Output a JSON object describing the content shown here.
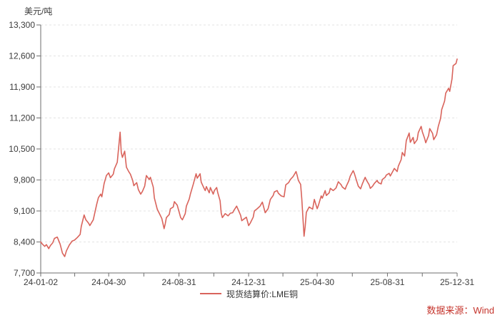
{
  "chart_data": {
    "type": "line",
    "unit_label": "美元/吨",
    "grid": "horizontal-dashed",
    "legend_position": "bottom-center",
    "ylim": [
      7700,
      13300
    ],
    "xlim": [
      "2024-01-02",
      "2025-12-31"
    ],
    "y_ticks": [
      {
        "label": "13,300",
        "value": 13300
      },
      {
        "label": "12,600",
        "value": 12600
      },
      {
        "label": "11,900",
        "value": 11900
      },
      {
        "label": "11,200",
        "value": 11200
      },
      {
        "label": "10,500",
        "value": 10500
      },
      {
        "label": "9,800",
        "value": 9800
      },
      {
        "label": "9,100",
        "value": 9100
      },
      {
        "label": "8,400",
        "value": 8400
      },
      {
        "label": "7,700",
        "value": 7700
      }
    ],
    "x_ticks": [
      {
        "label": "24-01-02",
        "date": "2024-01-02"
      },
      {
        "label": "24-04-30",
        "date": "2024-04-30"
      },
      {
        "label": "24-08-31",
        "date": "2024-08-31"
      },
      {
        "label": "24-12-31",
        "date": "2024-12-31"
      },
      {
        "label": "25-04-30",
        "date": "2025-04-30"
      },
      {
        "label": "25-08-31",
        "date": "2025-08-31"
      },
      {
        "label": "25-12-31",
        "date": "2025-12-31"
      }
    ],
    "series": [
      {
        "name": "现货结算价:LME铜",
        "color": "#D9645C",
        "points": [
          [
            "2024-01-02",
            8400
          ],
          [
            "2024-01-05",
            8350
          ],
          [
            "2024-01-09",
            8300
          ],
          [
            "2024-01-12",
            8340
          ],
          [
            "2024-01-16",
            8250
          ],
          [
            "2024-01-19",
            8320
          ],
          [
            "2024-01-23",
            8380
          ],
          [
            "2024-01-26",
            8480
          ],
          [
            "2024-01-31",
            8510
          ],
          [
            "2024-02-05",
            8350
          ],
          [
            "2024-02-09",
            8150
          ],
          [
            "2024-02-13",
            8070
          ],
          [
            "2024-02-16",
            8200
          ],
          [
            "2024-02-21",
            8330
          ],
          [
            "2024-02-26",
            8420
          ],
          [
            "2024-03-01",
            8440
          ],
          [
            "2024-03-06",
            8500
          ],
          [
            "2024-03-11",
            8570
          ],
          [
            "2024-03-13",
            8750
          ],
          [
            "2024-03-18",
            9010
          ],
          [
            "2024-03-21",
            8900
          ],
          [
            "2024-03-26",
            8820
          ],
          [
            "2024-03-28",
            8770
          ],
          [
            "2024-04-03",
            8900
          ],
          [
            "2024-04-09",
            9250
          ],
          [
            "2024-04-12",
            9400
          ],
          [
            "2024-04-16",
            9480
          ],
          [
            "2024-04-18",
            9420
          ],
          [
            "2024-04-22",
            9720
          ],
          [
            "2024-04-26",
            9900
          ],
          [
            "2024-04-30",
            9960
          ],
          [
            "2024-05-03",
            9850
          ],
          [
            "2024-05-08",
            9930
          ],
          [
            "2024-05-10",
            10050
          ],
          [
            "2024-05-15",
            10200
          ],
          [
            "2024-05-20",
            10880
          ],
          [
            "2024-05-22",
            10420
          ],
          [
            "2024-05-24",
            10310
          ],
          [
            "2024-05-28",
            10450
          ],
          [
            "2024-05-31",
            10090
          ],
          [
            "2024-06-04",
            9990
          ],
          [
            "2024-06-07",
            9930
          ],
          [
            "2024-06-11",
            9790
          ],
          [
            "2024-06-13",
            9670
          ],
          [
            "2024-06-18",
            9740
          ],
          [
            "2024-06-21",
            9580
          ],
          [
            "2024-06-25",
            9480
          ],
          [
            "2024-06-28",
            9540
          ],
          [
            "2024-07-02",
            9660
          ],
          [
            "2024-07-05",
            9900
          ],
          [
            "2024-07-10",
            9810
          ],
          [
            "2024-07-12",
            9860
          ],
          [
            "2024-07-17",
            9640
          ],
          [
            "2024-07-19",
            9390
          ],
          [
            "2024-07-24",
            9140
          ],
          [
            "2024-07-29",
            9010
          ],
          [
            "2024-08-01",
            8930
          ],
          [
            "2024-08-05",
            8700
          ],
          [
            "2024-08-07",
            8810
          ],
          [
            "2024-08-09",
            8950
          ],
          [
            "2024-08-14",
            9020
          ],
          [
            "2024-08-16",
            9150
          ],
          [
            "2024-08-21",
            9190
          ],
          [
            "2024-08-23",
            9310
          ],
          [
            "2024-08-28",
            9230
          ],
          [
            "2024-09-03",
            8950
          ],
          [
            "2024-09-06",
            8900
          ],
          [
            "2024-09-11",
            9040
          ],
          [
            "2024-09-13",
            9210
          ],
          [
            "2024-09-18",
            9370
          ],
          [
            "2024-09-20",
            9480
          ],
          [
            "2024-09-25",
            9700
          ],
          [
            "2024-09-30",
            9940
          ],
          [
            "2024-10-02",
            9840
          ],
          [
            "2024-10-07",
            9940
          ],
          [
            "2024-10-09",
            9750
          ],
          [
            "2024-10-14",
            9610
          ],
          [
            "2024-10-16",
            9560
          ],
          [
            "2024-10-18",
            9650
          ],
          [
            "2024-10-23",
            9510
          ],
          [
            "2024-10-25",
            9630
          ],
          [
            "2024-10-30",
            9480
          ],
          [
            "2024-11-01",
            9560
          ],
          [
            "2024-11-05",
            9630
          ],
          [
            "2024-11-07",
            9510
          ],
          [
            "2024-11-11",
            9330
          ],
          [
            "2024-11-13",
            9050
          ],
          [
            "2024-11-15",
            8950
          ],
          [
            "2024-11-20",
            9040
          ],
          [
            "2024-11-25",
            8990
          ],
          [
            "2024-11-29",
            9050
          ],
          [
            "2024-12-03",
            9060
          ],
          [
            "2024-12-05",
            9110
          ],
          [
            "2024-12-10",
            9210
          ],
          [
            "2024-12-12",
            9150
          ],
          [
            "2024-12-17",
            9000
          ],
          [
            "2024-12-19",
            8880
          ],
          [
            "2024-12-23",
            8920
          ],
          [
            "2024-12-27",
            8960
          ],
          [
            "2024-12-31",
            8770
          ],
          [
            "2025-01-03",
            8830
          ],
          [
            "2025-01-08",
            8960
          ],
          [
            "2025-01-10",
            9100
          ],
          [
            "2025-01-15",
            9150
          ],
          [
            "2025-01-20",
            9210
          ],
          [
            "2025-01-24",
            9300
          ],
          [
            "2025-01-29",
            9060
          ],
          [
            "2025-02-03",
            9150
          ],
          [
            "2025-02-07",
            9360
          ],
          [
            "2025-02-12",
            9450
          ],
          [
            "2025-02-14",
            9530
          ],
          [
            "2025-02-19",
            9560
          ],
          [
            "2025-02-21",
            9500
          ],
          [
            "2025-02-26",
            9440
          ],
          [
            "2025-03-03",
            9420
          ],
          [
            "2025-03-06",
            9690
          ],
          [
            "2025-03-11",
            9740
          ],
          [
            "2025-03-14",
            9810
          ],
          [
            "2025-03-19",
            9880
          ],
          [
            "2025-03-24",
            9990
          ],
          [
            "2025-03-26",
            9900
          ],
          [
            "2025-03-28",
            9790
          ],
          [
            "2025-04-01",
            9700
          ],
          [
            "2025-04-03",
            9380
          ],
          [
            "2025-04-07",
            8530
          ],
          [
            "2025-04-09",
            8750
          ],
          [
            "2025-04-11",
            9070
          ],
          [
            "2025-04-16",
            9190
          ],
          [
            "2025-04-22",
            9140
          ],
          [
            "2025-04-25",
            9360
          ],
          [
            "2025-04-30",
            9150
          ],
          [
            "2025-05-02",
            9220
          ],
          [
            "2025-05-07",
            9440
          ],
          [
            "2025-05-09",
            9390
          ],
          [
            "2025-05-14",
            9560
          ],
          [
            "2025-05-16",
            9450
          ],
          [
            "2025-05-21",
            9510
          ],
          [
            "2025-05-23",
            9610
          ],
          [
            "2025-05-28",
            9560
          ],
          [
            "2025-06-02",
            9620
          ],
          [
            "2025-06-06",
            9760
          ],
          [
            "2025-06-11",
            9690
          ],
          [
            "2025-06-13",
            9640
          ],
          [
            "2025-06-18",
            9590
          ],
          [
            "2025-06-20",
            9660
          ],
          [
            "2025-06-24",
            9770
          ],
          [
            "2025-06-27",
            9890
          ],
          [
            "2025-07-02",
            10010
          ],
          [
            "2025-07-04",
            9950
          ],
          [
            "2025-07-08",
            9780
          ],
          [
            "2025-07-11",
            9660
          ],
          [
            "2025-07-15",
            9600
          ],
          [
            "2025-07-18",
            9710
          ],
          [
            "2025-07-23",
            9860
          ],
          [
            "2025-07-25",
            9800
          ],
          [
            "2025-07-30",
            9690
          ],
          [
            "2025-08-01",
            9610
          ],
          [
            "2025-08-05",
            9660
          ],
          [
            "2025-08-08",
            9720
          ],
          [
            "2025-08-13",
            9790
          ],
          [
            "2025-08-15",
            9740
          ],
          [
            "2025-08-20",
            9710
          ],
          [
            "2025-08-22",
            9810
          ],
          [
            "2025-08-27",
            9860
          ],
          [
            "2025-08-29",
            9910
          ],
          [
            "2025-09-03",
            9950
          ],
          [
            "2025-09-05",
            9890
          ],
          [
            "2025-09-10",
            10010
          ],
          [
            "2025-09-12",
            10060
          ],
          [
            "2025-09-17",
            9990
          ],
          [
            "2025-09-19",
            10110
          ],
          [
            "2025-09-24",
            10260
          ],
          [
            "2025-09-26",
            10420
          ],
          [
            "2025-09-30",
            10340
          ],
          [
            "2025-10-03",
            10690
          ],
          [
            "2025-10-08",
            10860
          ],
          [
            "2025-10-10",
            10650
          ],
          [
            "2025-10-15",
            10760
          ],
          [
            "2025-10-17",
            10620
          ],
          [
            "2025-10-22",
            10710
          ],
          [
            "2025-10-24",
            10870
          ],
          [
            "2025-10-29",
            11010
          ],
          [
            "2025-10-31",
            10890
          ],
          [
            "2025-11-04",
            10740
          ],
          [
            "2025-11-06",
            10640
          ],
          [
            "2025-11-11",
            10800
          ],
          [
            "2025-11-13",
            10960
          ],
          [
            "2025-11-18",
            10850
          ],
          [
            "2025-11-20",
            10710
          ],
          [
            "2025-11-25",
            10820
          ],
          [
            "2025-11-28",
            11010
          ],
          [
            "2025-12-02",
            11190
          ],
          [
            "2025-12-04",
            11390
          ],
          [
            "2025-12-09",
            11580
          ],
          [
            "2025-12-11",
            11760
          ],
          [
            "2025-12-16",
            11870
          ],
          [
            "2025-12-18",
            11800
          ],
          [
            "2025-12-22",
            12080
          ],
          [
            "2025-12-24",
            12380
          ],
          [
            "2025-12-29",
            12430
          ],
          [
            "2025-12-31",
            12530
          ]
        ]
      }
    ]
  },
  "legend": {
    "label": "现货结算价:LME铜"
  },
  "source": {
    "label": "数据来源：Wind",
    "color": "#C5342C"
  },
  "colors": {
    "line": "#D9645C",
    "grid": "#E3E3E3",
    "axis": "#6E6E6E",
    "tick_label": "#3C3C3C"
  }
}
